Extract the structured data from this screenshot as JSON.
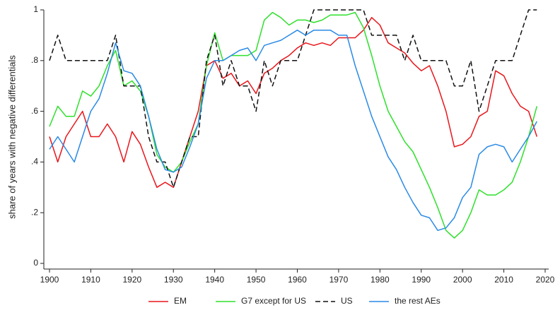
{
  "chart_data": {
    "type": "line",
    "y_label": "share of years with negative differentials",
    "x": [
      1900,
      1902,
      1904,
      1906,
      1908,
      1910,
      1912,
      1914,
      1916,
      1918,
      1920,
      1922,
      1924,
      1926,
      1928,
      1930,
      1932,
      1934,
      1936,
      1938,
      1940,
      1942,
      1944,
      1946,
      1948,
      1950,
      1952,
      1954,
      1956,
      1958,
      1960,
      1962,
      1964,
      1966,
      1968,
      1970,
      1972,
      1974,
      1976,
      1978,
      1980,
      1982,
      1984,
      1986,
      1988,
      1990,
      1992,
      1994,
      1996,
      1998,
      2000,
      2002,
      2004,
      2006,
      2008,
      2010,
      2012,
      2014,
      2016,
      2018
    ],
    "series": [
      {
        "name": "EM",
        "color": "#e8161b",
        "dash": false,
        "values": [
          0.5,
          0.4,
          0.5,
          0.55,
          0.6,
          0.5,
          0.5,
          0.55,
          0.5,
          0.4,
          0.52,
          0.47,
          0.38,
          0.3,
          0.32,
          0.3,
          0.4,
          0.5,
          0.6,
          0.78,
          0.8,
          0.73,
          0.75,
          0.7,
          0.72,
          0.67,
          0.75,
          0.77,
          0.8,
          0.82,
          0.85,
          0.87,
          0.86,
          0.87,
          0.86,
          0.89,
          0.89,
          0.89,
          0.92,
          0.97,
          0.94,
          0.87,
          0.85,
          0.83,
          0.79,
          0.76,
          0.78,
          0.7,
          0.6,
          0.46,
          0.47,
          0.5,
          0.58,
          0.6,
          0.76,
          0.74,
          0.67,
          0.62,
          0.6,
          0.5
        ]
      },
      {
        "name": "G7 except for US",
        "color": "#2ee02b",
        "dash": false,
        "values": [
          0.54,
          0.62,
          0.58,
          0.58,
          0.68,
          0.66,
          0.7,
          0.78,
          0.84,
          0.7,
          0.72,
          0.68,
          0.58,
          0.43,
          0.38,
          0.36,
          0.4,
          0.48,
          0.55,
          0.78,
          0.91,
          0.8,
          0.82,
          0.82,
          0.82,
          0.84,
          0.96,
          0.99,
          0.97,
          0.94,
          0.96,
          0.96,
          0.95,
          0.96,
          0.98,
          0.98,
          0.98,
          0.99,
          0.93,
          0.82,
          0.7,
          0.6,
          0.54,
          0.48,
          0.44,
          0.37,
          0.3,
          0.22,
          0.13,
          0.1,
          0.13,
          0.2,
          0.29,
          0.27,
          0.27,
          0.29,
          0.32,
          0.4,
          0.5,
          0.62
        ]
      },
      {
        "name": "US",
        "color": "#111111",
        "dash": true,
        "values": [
          0.8,
          0.9,
          0.8,
          0.8,
          0.8,
          0.8,
          0.8,
          0.8,
          0.9,
          0.7,
          0.7,
          0.7,
          0.5,
          0.4,
          0.4,
          0.3,
          0.4,
          0.5,
          0.5,
          0.8,
          0.9,
          0.7,
          0.8,
          0.7,
          0.7,
          0.6,
          0.8,
          0.7,
          0.8,
          0.8,
          0.8,
          0.9,
          1,
          1,
          1,
          1,
          1,
          1,
          1,
          0.9,
          0.9,
          0.9,
          0.9,
          0.8,
          0.9,
          0.8,
          0.8,
          0.8,
          0.8,
          0.7,
          0.7,
          0.8,
          0.6,
          0.7,
          0.8,
          0.8,
          0.8,
          0.9,
          1,
          1
        ]
      },
      {
        "name": "the rest AEs",
        "color": "#2a8ae6",
        "dash": false,
        "values": [
          0.45,
          0.5,
          0.45,
          0.4,
          0.5,
          0.6,
          0.65,
          0.75,
          0.87,
          0.76,
          0.75,
          0.7,
          0.58,
          0.45,
          0.37,
          0.36,
          0.38,
          0.46,
          0.55,
          0.73,
          0.8,
          0.8,
          0.82,
          0.84,
          0.85,
          0.8,
          0.86,
          0.87,
          0.88,
          0.9,
          0.92,
          0.9,
          0.92,
          0.92,
          0.92,
          0.9,
          0.9,
          0.78,
          0.68,
          0.58,
          0.5,
          0.42,
          0.37,
          0.3,
          0.24,
          0.19,
          0.18,
          0.13,
          0.14,
          0.18,
          0.26,
          0.3,
          0.43,
          0.46,
          0.47,
          0.46,
          0.4,
          0.45,
          0.5,
          0.56
        ]
      }
    ],
    "xlim": [
      1900,
      2020
    ],
    "xticks": [
      1900,
      1910,
      1920,
      1930,
      1940,
      1950,
      1960,
      1970,
      1980,
      1990,
      2000,
      2010,
      2020
    ],
    "ylim": [
      0,
      1
    ],
    "yticks": [
      0,
      {
        "value": 0.2,
        "label": ".2"
      },
      {
        "value": 0.4,
        "label": ".4"
      },
      {
        "value": 0.6,
        "label": ".6"
      },
      {
        "value": 0.8,
        "label": ".8"
      },
      1
    ],
    "legend": "bottom"
  }
}
